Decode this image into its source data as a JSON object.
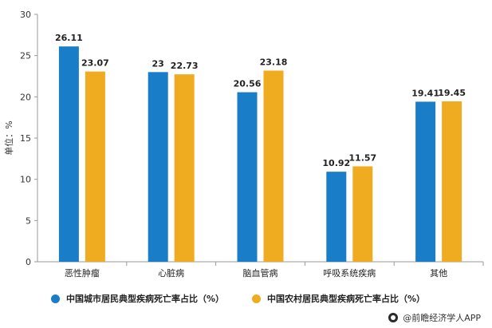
{
  "chart_data": {
    "type": "bar",
    "categories": [
      "恶性肿瘤",
      "心脏病",
      "脑血管病",
      "呼吸系统疾病",
      "其他"
    ],
    "series": [
      {
        "name": "中国城市居民典型疾病死亡率占比（%）",
        "values": [
          26.11,
          23,
          20.56,
          10.92,
          19.41
        ],
        "labels": [
          "26.11",
          "23",
          "20.56",
          "10.92",
          "19.41"
        ],
        "color": "#1a7dc8"
      },
      {
        "name": "中国农村居民典型疾病死亡率占比（%）",
        "values": [
          23.07,
          22.73,
          23.18,
          11.57,
          19.45
        ],
        "labels": [
          "23.07",
          "22.73",
          "23.18",
          "11.57",
          "19.45"
        ],
        "color": "#f0ac20"
      }
    ],
    "ylabel": "单位：%",
    "ylim": [
      0,
      30
    ],
    "yticks": [
      0,
      5,
      10,
      15,
      20,
      25,
      30
    ],
    "grid": false,
    "legend_position": "bottom"
  },
  "source": {
    "text": "@前瞻经济学人APP",
    "icon": "source-logo-icon"
  }
}
